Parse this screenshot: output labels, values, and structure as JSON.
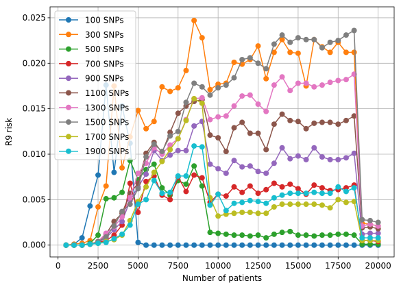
{
  "chart_data": {
    "type": "line",
    "xlabel": "Number of patients",
    "ylabel": "R9 risk",
    "xlim": [
      -500,
      21000
    ],
    "ylim": [
      -0.0013,
      0.0262
    ],
    "xticks": [
      0,
      2500,
      5000,
      7500,
      10000,
      12500,
      15000,
      17500,
      20000
    ],
    "xtick_labels": [
      "0",
      "2500",
      "5000",
      "7500",
      "10000",
      "12500",
      "15000",
      "17500",
      "20000"
    ],
    "yticks": [
      0.0,
      0.005,
      0.01,
      0.015,
      0.02,
      0.025
    ],
    "ytick_labels": [
      "0.000",
      "0.005",
      "0.010",
      "0.015",
      "0.020",
      "0.025"
    ],
    "grid": true,
    "legend_position": "top-left",
    "x": [
      500,
      1000,
      1500,
      2000,
      2500,
      3000,
      3500,
      4000,
      4500,
      5000,
      5500,
      6000,
      6500,
      7000,
      7500,
      8000,
      8500,
      9000,
      9500,
      10000,
      10500,
      11000,
      11500,
      12000,
      12500,
      13000,
      13500,
      14000,
      14500,
      15000,
      15500,
      16000,
      16500,
      17000,
      17500,
      18000,
      18500,
      19000,
      19500,
      20000
    ],
    "series": [
      {
        "name": "100 SNPs",
        "color": "#1f77b4",
        "values": [
          0.0,
          0.0001,
          0.0008,
          0.0043,
          0.0077,
          0.0176,
          0.008,
          0.0153,
          0.0112,
          0.0003,
          0.0,
          0.0,
          0.0,
          0.0,
          0.0,
          0.0,
          0.0,
          0.0,
          0.0,
          0.0,
          0.0,
          0.0,
          0.0,
          0.0,
          0.0,
          0.0,
          0.0,
          0.0,
          0.0,
          0.0,
          0.0,
          0.0,
          0.0,
          0.0,
          0.0,
          0.0,
          0.0,
          0.0,
          0.0,
          0.0
        ]
      },
      {
        "name": "300 SNPs",
        "color": "#ff7f0e",
        "values": [
          0.0,
          0.0001,
          0.0002,
          0.0005,
          0.0042,
          0.0065,
          0.0175,
          0.0085,
          0.0119,
          0.0148,
          0.0128,
          0.0136,
          0.0174,
          0.0169,
          0.0173,
          0.0192,
          0.0247,
          0.0228,
          0.0171,
          0.0177,
          0.0178,
          0.0201,
          0.0199,
          0.0204,
          0.0219,
          0.0183,
          0.0212,
          0.0226,
          0.0212,
          0.0211,
          0.0175,
          0.0226,
          0.0218,
          0.0212,
          0.0223,
          0.0212,
          0.0212,
          0.0024,
          0.0023,
          0.0021
        ]
      },
      {
        "name": "500 SNPs",
        "color": "#2ca02c",
        "values": [
          0.0,
          0.0,
          0.0,
          0.0002,
          0.0011,
          0.0051,
          0.0052,
          0.0058,
          0.0093,
          0.0072,
          0.0083,
          0.0089,
          0.0063,
          0.0055,
          0.0071,
          0.0067,
          0.0087,
          0.0065,
          0.0014,
          0.0013,
          0.0012,
          0.0011,
          0.0011,
          0.001,
          0.0011,
          0.0008,
          0.0012,
          0.0014,
          0.0015,
          0.0011,
          0.0011,
          0.001,
          0.0011,
          0.0011,
          0.0012,
          0.0012,
          0.0011,
          0.0001,
          0.0001,
          0.0001
        ]
      },
      {
        "name": "700 SNPs",
        "color": "#d62728",
        "values": [
          0.0,
          0.0,
          0.0,
          0.0001,
          0.0003,
          0.0005,
          0.0011,
          0.0022,
          0.0068,
          0.0036,
          0.007,
          0.0076,
          0.0055,
          0.005,
          0.0075,
          0.0059,
          0.0077,
          0.0074,
          0.0047,
          0.0056,
          0.0054,
          0.0064,
          0.0058,
          0.0065,
          0.0057,
          0.0061,
          0.0068,
          0.0064,
          0.0067,
          0.0062,
          0.0056,
          0.0066,
          0.0063,
          0.006,
          0.0061,
          0.0063,
          0.0066,
          0.0005,
          0.0005,
          0.0004
        ]
      },
      {
        "name": "900 SNPs",
        "color": "#9467bd",
        "values": [
          0.0,
          0.0,
          0.0,
          0.0001,
          0.0003,
          0.0008,
          0.0017,
          0.0026,
          0.0049,
          0.0064,
          0.0078,
          0.0104,
          0.0093,
          0.0099,
          0.0104,
          0.0104,
          0.0131,
          0.0136,
          0.0089,
          0.0084,
          0.0079,
          0.0093,
          0.0086,
          0.0087,
          0.0081,
          0.0079,
          0.009,
          0.0107,
          0.0095,
          0.0098,
          0.0094,
          0.0107,
          0.0097,
          0.0094,
          0.0094,
          0.0096,
          0.0101,
          0.0012,
          0.0013,
          0.0013
        ]
      },
      {
        "name": "1100 SNPs",
        "color": "#8c564b",
        "values": [
          0.0,
          0.0,
          0.0,
          0.0001,
          0.0004,
          0.0012,
          0.0026,
          0.0035,
          0.0057,
          0.0068,
          0.0101,
          0.0113,
          0.0102,
          0.0124,
          0.0145,
          0.0153,
          0.0158,
          0.016,
          0.0121,
          0.0118,
          0.0103,
          0.0129,
          0.0135,
          0.0123,
          0.0123,
          0.0105,
          0.0133,
          0.0144,
          0.0137,
          0.0136,
          0.0128,
          0.0134,
          0.0135,
          0.0135,
          0.0133,
          0.0137,
          0.0142,
          0.0019,
          0.002,
          0.0018
        ]
      },
      {
        "name": "1300 SNPs",
        "color": "#e377c2",
        "values": [
          0.0,
          0.0,
          0.0,
          0.0001,
          0.0004,
          0.0013,
          0.002,
          0.0031,
          0.0052,
          0.0079,
          0.009,
          0.0107,
          0.01,
          0.011,
          0.0117,
          0.0138,
          0.0161,
          0.0162,
          0.0138,
          0.0141,
          0.0142,
          0.0153,
          0.0164,
          0.0165,
          0.0155,
          0.0147,
          0.0176,
          0.0185,
          0.017,
          0.0178,
          0.0178,
          0.0174,
          0.0176,
          0.0179,
          0.0181,
          0.0182,
          0.0188,
          0.0021,
          0.0023,
          0.0021
        ]
      },
      {
        "name": "1500 SNPs",
        "color": "#7f7f7f",
        "values": [
          0.0,
          0.0,
          0.0,
          0.0001,
          0.0004,
          0.0009,
          0.0021,
          0.0037,
          0.0045,
          0.0062,
          0.0097,
          0.0111,
          0.0103,
          0.012,
          0.0125,
          0.0157,
          0.0178,
          0.0174,
          0.0165,
          0.0173,
          0.0176,
          0.0184,
          0.0204,
          0.0206,
          0.02,
          0.0194,
          0.0221,
          0.0231,
          0.0223,
          0.0228,
          0.0226,
          0.0226,
          0.0217,
          0.0223,
          0.0225,
          0.0231,
          0.0236,
          0.0028,
          0.0027,
          0.0025
        ]
      },
      {
        "name": "1700 SNPs",
        "color": "#bcbd22",
        "values": [
          0.0,
          0.0,
          0.0,
          0.0001,
          0.0002,
          0.0004,
          0.0006,
          0.0011,
          0.0027,
          0.0048,
          0.0064,
          0.008,
          0.0092,
          0.0105,
          0.0117,
          0.0137,
          0.0161,
          0.0156,
          0.0052,
          0.0032,
          0.0034,
          0.0035,
          0.0036,
          0.0036,
          0.0035,
          0.0035,
          0.0042,
          0.0045,
          0.0045,
          0.0045,
          0.0045,
          0.0045,
          0.0044,
          0.0041,
          0.005,
          0.0047,
          0.0048,
          0.0005,
          0.0005,
          0.0005
        ]
      },
      {
        "name": "1900 SNPs",
        "color": "#17becf",
        "values": [
          0.0,
          0.0,
          0.0,
          0.0001,
          0.0002,
          0.0003,
          0.0007,
          0.0012,
          0.0022,
          0.0045,
          0.005,
          0.0071,
          0.0057,
          0.0058,
          0.0076,
          0.0076,
          0.0109,
          0.0108,
          0.0044,
          0.0056,
          0.0038,
          0.0046,
          0.0047,
          0.0049,
          0.0048,
          0.0046,
          0.0052,
          0.0055,
          0.0057,
          0.0057,
          0.0057,
          0.0058,
          0.0057,
          0.0057,
          0.0064,
          0.0059,
          0.0063,
          0.0008,
          0.0008,
          0.0008
        ]
      }
    ]
  }
}
